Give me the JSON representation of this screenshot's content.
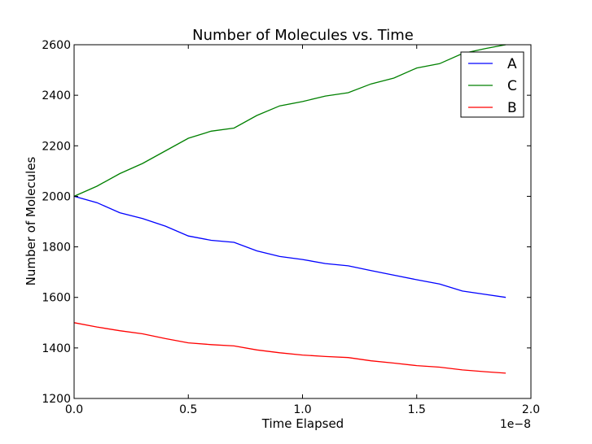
{
  "chart_data": {
    "type": "line",
    "title": "Number of Molecules vs. Time",
    "xlabel": "Time Elapsed",
    "ylabel": "Number of Molecules",
    "x_offset_label": "1e−8",
    "xlim": [
      0,
      2.0
    ],
    "ylim": [
      1200,
      2600
    ],
    "x_ticks": [
      "0.0",
      "0.5",
      "1.0",
      "1.5",
      "2.0"
    ],
    "y_ticks": [
      "1200",
      "1400",
      "1600",
      "1800",
      "2000",
      "2200",
      "2400",
      "2600"
    ],
    "grid": false,
    "legend_position": "top-right",
    "x": [
      0.0,
      0.1,
      0.2,
      0.3,
      0.4,
      0.5,
      0.6,
      0.7,
      0.8,
      0.9,
      1.0,
      1.1,
      1.2,
      1.3,
      1.4,
      1.5,
      1.6,
      1.7,
      1.8,
      1.89
    ],
    "series": [
      {
        "name": "A",
        "color": "#0000ff",
        "values": [
          2000,
          1975,
          1935,
          1912,
          1882,
          1843,
          1826,
          1818,
          1784,
          1762,
          1750,
          1734,
          1725,
          1706,
          1688,
          1670,
          1653,
          1625,
          1612,
          1600
        ]
      },
      {
        "name": "C",
        "color": "#008000",
        "values": [
          2000,
          2040,
          2090,
          2130,
          2180,
          2230,
          2258,
          2270,
          2320,
          2358,
          2375,
          2397,
          2410,
          2445,
          2468,
          2508,
          2525,
          2565,
          2585,
          2600
        ]
      },
      {
        "name": "B",
        "color": "#ff0000",
        "values": [
          1500,
          1483,
          1468,
          1456,
          1437,
          1420,
          1413,
          1408,
          1392,
          1381,
          1372,
          1366,
          1362,
          1349,
          1340,
          1330,
          1324,
          1313,
          1306,
          1300
        ]
      }
    ]
  }
}
